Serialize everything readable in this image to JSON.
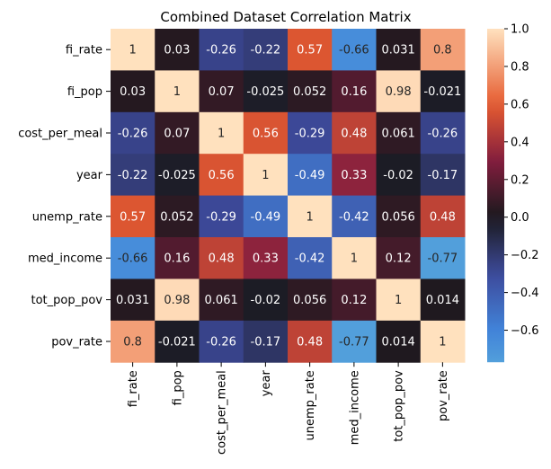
{
  "chart_data": {
    "type": "heatmap",
    "title": "Combined Dataset Correlation Matrix",
    "labels": [
      "fi_rate",
      "fi_pop",
      "cost_per_meal",
      "year",
      "unemp_rate",
      "med_income",
      "tot_pop_pov",
      "pov_rate"
    ],
    "values": [
      [
        1,
        0.03,
        -0.26,
        -0.22,
        0.57,
        -0.66,
        0.031,
        0.8
      ],
      [
        0.03,
        1,
        0.07,
        -0.025,
        0.052,
        0.16,
        0.98,
        -0.021
      ],
      [
        -0.26,
        0.07,
        1,
        0.56,
        -0.29,
        0.48,
        0.061,
        -0.26
      ],
      [
        -0.22,
        -0.025,
        0.56,
        1,
        -0.49,
        0.33,
        -0.02,
        -0.17
      ],
      [
        0.57,
        0.052,
        -0.29,
        -0.49,
        1,
        -0.42,
        0.056,
        0.48
      ],
      [
        -0.66,
        0.16,
        0.48,
        0.33,
        -0.42,
        1,
        0.12,
        -0.77
      ],
      [
        0.031,
        0.98,
        0.061,
        -0.02,
        0.056,
        0.12,
        1,
        0.014
      ],
      [
        0.8,
        -0.021,
        -0.26,
        -0.17,
        0.48,
        -0.77,
        0.014,
        1
      ]
    ],
    "value_labels": [
      [
        "1",
        "0.03",
        "-0.26",
        "-0.22",
        "0.57",
        "-0.66",
        "0.031",
        "0.8"
      ],
      [
        "0.03",
        "1",
        "0.07",
        "-0.025",
        "0.052",
        "0.16",
        "0.98",
        "-0.021"
      ],
      [
        "-0.26",
        "0.07",
        "1",
        "0.56",
        "-0.29",
        "0.48",
        "0.061",
        "-0.26"
      ],
      [
        "-0.22",
        "-0.025",
        "0.56",
        "1",
        "-0.49",
        "0.33",
        "-0.02",
        "-0.17"
      ],
      [
        "0.57",
        "0.052",
        "-0.29",
        "-0.49",
        "1",
        "-0.42",
        "0.056",
        "0.48"
      ],
      [
        "-0.66",
        "0.16",
        "0.48",
        "0.33",
        "-0.42",
        "1",
        "0.12",
        "-0.77"
      ],
      [
        "0.031",
        "0.98",
        "0.061",
        "-0.02",
        "0.056",
        "0.12",
        "1",
        "0.014"
      ],
      [
        "0.8",
        "-0.021",
        "-0.26",
        "-0.17",
        "0.48",
        "-0.77",
        "0.014",
        "1"
      ]
    ],
    "colorbar": {
      "vmin": -0.77,
      "vmax": 1,
      "center": 0,
      "ticks": [
        -0.6,
        -0.4,
        -0.2,
        0,
        0.2,
        0.4,
        0.6,
        0.8,
        1
      ],
      "tick_labels": [
        "−0.6",
        "−0.4",
        "−0.2",
        "0.0",
        "0.2",
        "0.4",
        "0.6",
        "0.8",
        "1.0"
      ]
    },
    "colormap": "icefire",
    "annotated": true,
    "grid": false
  }
}
